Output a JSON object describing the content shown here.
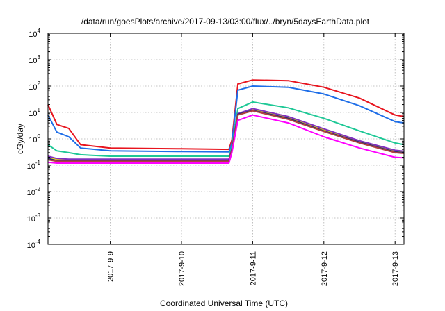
{
  "chart_data": {
    "type": "line",
    "title": "/data/run/goesPlots/archive/2017-09-13/03:00/flux/../bryn/5daysEarthData.plot",
    "xlabel": "Coordinated Universal Time (UTC)",
    "ylabel": "cGy/day",
    "yscale": "log",
    "ylim": [
      0.0001,
      10000
    ],
    "y_ticks": [
      {
        "base": "10",
        "exp": "-4",
        "value": 0.0001
      },
      {
        "base": "10",
        "exp": "-3",
        "value": 0.001
      },
      {
        "base": "10",
        "exp": "-2",
        "value": 0.01
      },
      {
        "base": "10",
        "exp": "-1",
        "value": 0.1
      },
      {
        "base": "10",
        "exp": "0",
        "value": 1
      },
      {
        "base": "10",
        "exp": "1",
        "value": 10
      },
      {
        "base": "10",
        "exp": "2",
        "value": 100
      },
      {
        "base": "10",
        "exp": "3",
        "value": 1000
      },
      {
        "base": "10",
        "exp": "4",
        "value": 10000
      }
    ],
    "xlim": [
      "2017-09-08T03:00",
      "2017-09-13T03:00"
    ],
    "x_ticks": [
      "2017-9-9",
      "2017-9-10",
      "2017-9-11",
      "2017-9-12",
      "2017-9-13"
    ],
    "grid": true,
    "series": [
      {
        "color": "#e8141e",
        "x": [
          "2017-09-08T03:00",
          "2017-09-08T06:00",
          "2017-09-08T10:00",
          "2017-09-08T14:00",
          "2017-09-09T00:00",
          "2017-09-10T00:00",
          "2017-09-10T16:00",
          "2017-09-10T17:00",
          "2017-09-10T19:00",
          "2017-09-11T00:00",
          "2017-09-11T12:00",
          "2017-09-12T00:00",
          "2017-09-12T12:00",
          "2017-09-13T00:00",
          "2017-09-13T03:00"
        ],
        "y": [
          20,
          3.5,
          2.5,
          0.6,
          0.45,
          0.42,
          0.4,
          0.9,
          120,
          170,
          160,
          90,
          35,
          8,
          7
        ]
      },
      {
        "color": "#1e6ee8",
        "x": [
          "2017-09-08T03:00",
          "2017-09-08T06:00",
          "2017-09-08T10:00",
          "2017-09-08T14:00",
          "2017-09-09T00:00",
          "2017-09-10T00:00",
          "2017-09-10T16:00",
          "2017-09-10T17:00",
          "2017-09-10T19:00",
          "2017-09-11T00:00",
          "2017-09-11T12:00",
          "2017-09-12T00:00",
          "2017-09-12T12:00",
          "2017-09-13T00:00",
          "2017-09-13T03:00"
        ],
        "y": [
          8,
          1.8,
          1.2,
          0.45,
          0.35,
          0.33,
          0.32,
          0.7,
          70,
          100,
          90,
          50,
          18,
          4.5,
          4
        ]
      },
      {
        "color": "#1ec896",
        "x": [
          "2017-09-08T03:00",
          "2017-09-08T06:00",
          "2017-09-08T10:00",
          "2017-09-08T14:00",
          "2017-09-09T00:00",
          "2017-09-10T00:00",
          "2017-09-10T16:00",
          "2017-09-10T17:00",
          "2017-09-10T19:00",
          "2017-09-11T00:00",
          "2017-09-11T12:00",
          "2017-09-12T00:00",
          "2017-09-12T12:00",
          "2017-09-13T00:00",
          "2017-09-13T03:00"
        ],
        "y": [
          0.6,
          0.35,
          0.3,
          0.25,
          0.22,
          0.22,
          0.22,
          0.5,
          14,
          25,
          15,
          6,
          2,
          0.7,
          0.6
        ]
      },
      {
        "color": "#f0e000",
        "x": [
          "2017-09-08T03:00",
          "2017-09-08T06:00",
          "2017-09-08T10:00",
          "2017-09-08T14:00",
          "2017-09-09T00:00",
          "2017-09-10T00:00",
          "2017-09-10T16:00",
          "2017-09-10T17:00",
          "2017-09-10T19:00",
          "2017-09-11T00:00",
          "2017-09-11T12:00",
          "2017-09-12T00:00",
          "2017-09-12T12:00",
          "2017-09-13T00:00",
          "2017-09-13T03:00"
        ],
        "y": [
          0.2,
          0.17,
          0.16,
          0.16,
          0.16,
          0.16,
          0.16,
          0.4,
          8,
          13,
          6.5,
          2.2,
          0.8,
          0.35,
          0.32
        ]
      },
      {
        "color": "#8030c0",
        "x": [
          "2017-09-08T03:00",
          "2017-09-08T06:00",
          "2017-09-08T10:00",
          "2017-09-08T14:00",
          "2017-09-09T00:00",
          "2017-09-10T00:00",
          "2017-09-10T16:00",
          "2017-09-10T17:00",
          "2017-09-10T19:00",
          "2017-09-11T00:00",
          "2017-09-11T12:00",
          "2017-09-12T00:00",
          "2017-09-12T12:00",
          "2017-09-13T00:00",
          "2017-09-13T03:00"
        ],
        "y": [
          0.22,
          0.18,
          0.17,
          0.17,
          0.17,
          0.17,
          0.17,
          0.42,
          9,
          14,
          7,
          2.4,
          0.85,
          0.37,
          0.34
        ]
      },
      {
        "color": "#303070",
        "x": [
          "2017-09-08T03:00",
          "2017-09-08T06:00",
          "2017-09-08T10:00",
          "2017-09-08T14:00",
          "2017-09-09T00:00",
          "2017-09-10T00:00",
          "2017-09-10T16:00",
          "2017-09-10T17:00",
          "2017-09-10T19:00",
          "2017-09-11T00:00",
          "2017-09-11T12:00",
          "2017-09-12T00:00",
          "2017-09-12T12:00",
          "2017-09-13T00:00",
          "2017-09-13T03:00"
        ],
        "y": [
          0.18,
          0.15,
          0.15,
          0.15,
          0.15,
          0.15,
          0.15,
          0.38,
          8.5,
          12,
          6,
          2,
          0.75,
          0.32,
          0.3
        ]
      },
      {
        "color": "#b04040",
        "x": [
          "2017-09-08T03:00",
          "2017-09-08T06:00",
          "2017-09-08T10:00",
          "2017-09-08T14:00",
          "2017-09-09T00:00",
          "2017-09-10T00:00",
          "2017-09-10T16:00",
          "2017-09-10T17:00",
          "2017-09-10T19:00",
          "2017-09-11T00:00",
          "2017-09-11T12:00",
          "2017-09-12T00:00",
          "2017-09-12T12:00",
          "2017-09-13T00:00",
          "2017-09-13T03:00"
        ],
        "y": [
          0.16,
          0.14,
          0.14,
          0.14,
          0.14,
          0.14,
          0.14,
          0.36,
          8,
          11.5,
          5.5,
          1.9,
          0.7,
          0.3,
          0.28
        ]
      },
      {
        "color": "#ff00ff",
        "x": [
          "2017-09-08T03:00",
          "2017-09-08T06:00",
          "2017-09-08T10:00",
          "2017-09-08T14:00",
          "2017-09-09T00:00",
          "2017-09-10T00:00",
          "2017-09-10T16:00",
          "2017-09-10T17:00",
          "2017-09-10T19:00",
          "2017-09-11T00:00",
          "2017-09-11T12:00",
          "2017-09-12T00:00",
          "2017-09-12T12:00",
          "2017-09-13T00:00",
          "2017-09-13T03:00"
        ],
        "y": [
          0.13,
          0.12,
          0.12,
          0.12,
          0.12,
          0.12,
          0.12,
          0.3,
          5,
          8,
          4,
          1.2,
          0.45,
          0.2,
          0.19
        ]
      }
    ]
  }
}
